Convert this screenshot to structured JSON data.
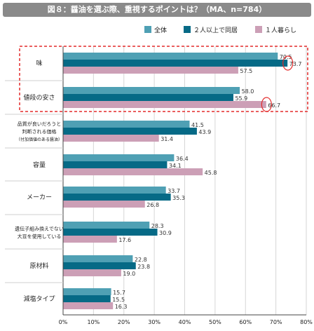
{
  "title": "図８：醤油を選ぶ際、重視するポイントは？（MA、n=784）",
  "chart_data": {
    "type": "bar",
    "orientation": "horizontal",
    "categories": [
      [
        "味"
      ],
      [
        "値段の安さ"
      ],
      [
        "品質が良いだろうと",
        "判断される価格",
        "（付加価値のある醤油）"
      ],
      [
        "容量"
      ],
      [
        "メーカー"
      ],
      [
        "遺伝子組み換えでない",
        "大豆を使用している"
      ],
      [
        "原材料"
      ],
      [
        "減塩タイプ"
      ]
    ],
    "series": [
      {
        "name": "全体",
        "color": "#4fa0b4",
        "values": [
          70.5,
          58.0,
          41.5,
          36.4,
          33.7,
          28.3,
          22.8,
          15.7
        ]
      },
      {
        "name": "２人以上で同居",
        "color": "#066a86",
        "values": [
          73.7,
          55.9,
          43.9,
          34.1,
          35.3,
          30.9,
          23.8,
          15.5
        ]
      },
      {
        "name": "１人暮らし",
        "color": "#cc9fb6",
        "values": [
          57.5,
          66.7,
          31.4,
          45.8,
          26.8,
          17.6,
          19.0,
          16.3
        ]
      }
    ],
    "value_labels": [
      [
        "70.5",
        "58.0",
        "41.5",
        "36.4",
        "33.7",
        "28.3",
        "22.8",
        "15.7"
      ],
      [
        "73.7",
        "55.9",
        "43.9",
        "34.1",
        "35.3",
        "30.9",
        "23.8",
        "15.5"
      ],
      [
        "57.5",
        "66.7",
        "31.4",
        "45.8",
        "26.8",
        "17.6",
        "19.0",
        "16.3"
      ]
    ],
    "xlim": [
      0,
      80
    ],
    "ticks": [
      "0%",
      "10%",
      "20%",
      "30%",
      "40%",
      "50%",
      "60%",
      "70%",
      "80%"
    ],
    "legend_position": "top-right",
    "highlight": {
      "box_color": "#e32a2a",
      "circled_values": [
        "73.7",
        "66.7"
      ]
    }
  }
}
